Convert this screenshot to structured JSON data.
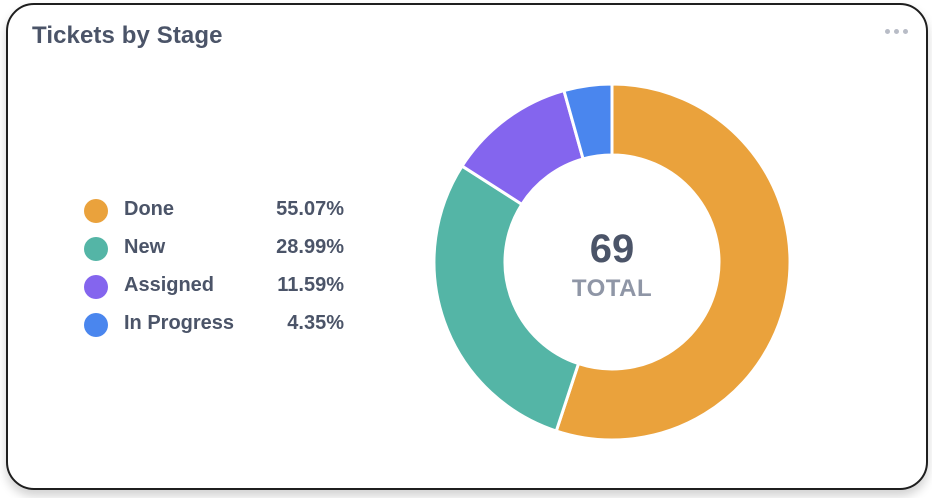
{
  "widget": {
    "title": "Tickets by Stage",
    "menu_icon": "more-horizontal-icon"
  },
  "chart_data": {
    "type": "pie",
    "donut": true,
    "title": "Tickets by Stage",
    "center": {
      "value": "69",
      "label": "TOTAL"
    },
    "categories": [
      "Done",
      "New",
      "Assigned",
      "In Progress"
    ],
    "values": [
      55.07,
      28.99,
      11.59,
      4.35
    ],
    "labels": [
      "55.07%",
      "28.99%",
      "11.59%",
      "4.35%"
    ],
    "colors": [
      "#eaa23c",
      "#54b5a6",
      "#8465ee",
      "#4a86ee"
    ],
    "legend": "left"
  }
}
